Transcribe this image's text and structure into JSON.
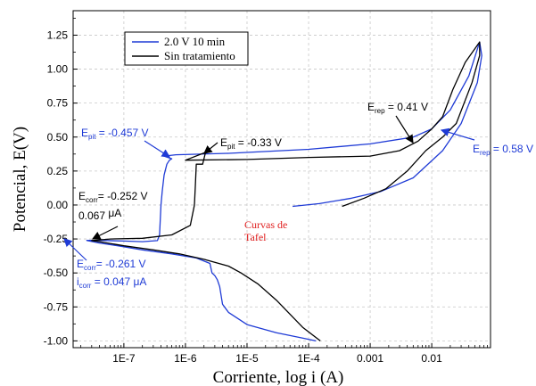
{
  "chart_data": {
    "type": "line",
    "xlabel": "Corriente, log i (A)",
    "ylabel": "Potencial, E(V)",
    "x_scale": "log",
    "xlim": [
      1.5e-08,
      0.09
    ],
    "ylim": [
      -1.05,
      1.43
    ],
    "x_ticks": [
      {
        "value": 1e-07,
        "label": "1E-7"
      },
      {
        "value": 1e-06,
        "label": "1E-6"
      },
      {
        "value": 1e-05,
        "label": "1E-5"
      },
      {
        "value": 0.0001,
        "label": "1E-4"
      },
      {
        "value": 0.001,
        "label": "0.001"
      },
      {
        "value": 0.01,
        "label": "0.01"
      }
    ],
    "y_ticks": [
      {
        "value": -1.0,
        "label": "-1.00"
      },
      {
        "value": -0.75,
        "label": "-0.75"
      },
      {
        "value": -0.5,
        "label": "-0.50"
      },
      {
        "value": -0.25,
        "label": "-0.25"
      },
      {
        "value": 0.0,
        "label": "0.00"
      },
      {
        "value": 0.25,
        "label": "0.25"
      },
      {
        "value": 0.5,
        "label": "0.50"
      },
      {
        "value": 0.75,
        "label": "0.75"
      },
      {
        "value": 1.0,
        "label": "1.00"
      },
      {
        "value": 1.25,
        "label": "1.25"
      }
    ],
    "grid": true,
    "legend_position": "top-left",
    "series": [
      {
        "name": "2.0 V 10 min",
        "color": "#1f3bd6",
        "points": [
          [
            0.000132,
            -1.0
          ],
          [
            8e-05,
            -0.98
          ],
          [
            3e-05,
            -0.94
          ],
          [
            1e-05,
            -0.88
          ],
          [
            5e-06,
            -0.79
          ],
          [
            4e-06,
            -0.73
          ],
          [
            3.6e-06,
            -0.6
          ],
          [
            3.3e-06,
            -0.55
          ],
          [
            3e-06,
            -0.52
          ],
          [
            2.7e-06,
            -0.5
          ],
          [
            2.5e-06,
            -0.43
          ],
          [
            1.5e-06,
            -0.39
          ],
          [
            6e-07,
            -0.36
          ],
          [
            2e-07,
            -0.33
          ],
          [
            8e-08,
            -0.3
          ],
          [
            4e-08,
            -0.28
          ],
          [
            2.5e-08,
            -0.261
          ],
          [
            4e-08,
            -0.26
          ],
          [
            1e-07,
            -0.265
          ],
          [
            2e-07,
            -0.27
          ],
          [
            3.5e-07,
            -0.262
          ],
          [
            3.8e-07,
            -0.22
          ],
          [
            4e-07,
            0.0
          ],
          [
            4.2e-07,
            0.1
          ],
          [
            4.5e-07,
            0.22
          ],
          [
            5e-07,
            0.3
          ],
          [
            5.5e-07,
            0.33
          ],
          [
            6e-07,
            0.34
          ],
          [
            4.5e-07,
            0.36
          ],
          [
            7e-07,
            0.37
          ],
          [
            5e-06,
            0.38
          ],
          [
            0.0001,
            0.41
          ],
          [
            0.001,
            0.45
          ],
          [
            0.005,
            0.5
          ],
          [
            0.01,
            0.56
          ],
          [
            0.02,
            0.7
          ],
          [
            0.04,
            0.95
          ],
          [
            0.06,
            1.2
          ],
          [
            0.065,
            1.1
          ],
          [
            0.055,
            0.9
          ],
          [
            0.03,
            0.6
          ],
          [
            0.015,
            0.4
          ],
          [
            0.005,
            0.2
          ],
          [
            0.0015,
            0.1
          ],
          [
            0.0005,
            0.05
          ],
          [
            0.00015,
            0.01
          ],
          [
            5.5e-05,
            -0.01
          ]
        ]
      },
      {
        "name": "Sin tratamiento",
        "color": "#000000",
        "points": [
          [
            0.000155,
            -1.0
          ],
          [
            8e-05,
            -0.9
          ],
          [
            3e-05,
            -0.7
          ],
          [
            1.5e-05,
            -0.58
          ],
          [
            8e-06,
            -0.5
          ],
          [
            5e-06,
            -0.45
          ],
          [
            2e-06,
            -0.4
          ],
          [
            8e-07,
            -0.36
          ],
          [
            3e-07,
            -0.33
          ],
          [
            1e-07,
            -0.3
          ],
          [
            4e-08,
            -0.27
          ],
          [
            3e-08,
            -0.262
          ],
          [
            6e-08,
            -0.25
          ],
          [
            2e-07,
            -0.245
          ],
          [
            6e-07,
            -0.22
          ],
          [
            1.2e-06,
            -0.15
          ],
          [
            1.4e-06,
            0.0
          ],
          [
            1.45e-06,
            0.15
          ],
          [
            1.5e-06,
            0.3
          ],
          [
            1.8e-06,
            0.3
          ],
          [
            1.9e-06,
            0.3
          ],
          [
            2.1e-06,
            0.38
          ],
          [
            2.5e-06,
            0.4
          ],
          [
            1e-06,
            0.33
          ],
          [
            1e-05,
            0.335
          ],
          [
            0.0001,
            0.35
          ],
          [
            0.001,
            0.36
          ],
          [
            0.003,
            0.4
          ],
          [
            0.006,
            0.47
          ],
          [
            0.01,
            0.56
          ],
          [
            0.015,
            0.65
          ],
          [
            0.022,
            0.85
          ],
          [
            0.035,
            1.05
          ],
          [
            0.06,
            1.2
          ],
          [
            0.06,
            1.1
          ],
          [
            0.045,
            0.9
          ],
          [
            0.025,
            0.6
          ],
          [
            0.015,
            0.5
          ],
          [
            0.008,
            0.4
          ],
          [
            0.004,
            0.25
          ],
          [
            0.0018,
            0.12
          ],
          [
            0.0008,
            0.05
          ],
          [
            0.00035,
            -0.01
          ]
        ]
      }
    ],
    "annotations": [
      {
        "id": "e-pit-blue",
        "main": "E",
        "sub": "pit",
        "rest": " = -0.457 V",
        "color": "#1f3bd6"
      },
      {
        "id": "e-pit-black",
        "main": "E",
        "sub": "pit",
        "rest": " = -0.33 V",
        "color": "#000000"
      },
      {
        "id": "e-rep-black",
        "main": "E",
        "sub": "rep",
        "rest": " = 0.41 V",
        "color": "#000000"
      },
      {
        "id": "e-rep-blue",
        "main": "E",
        "sub": "rep",
        "rest": " = 0.58 V",
        "color": "#1f3bd6"
      },
      {
        "id": "e-corr-black",
        "main": "E",
        "sub": "corr",
        "rest": "= -0.252 V",
        "color": "#000000"
      },
      {
        "id": "i-corr-black",
        "main": "0.067 ",
        "sub": "",
        "rest": "μA",
        "color": "#000000"
      },
      {
        "id": "e-corr-blue",
        "main": "E",
        "sub": "corr",
        "rest": "= -0.261 V",
        "color": "#1f3bd6"
      },
      {
        "id": "i-corr-blue",
        "main": "i",
        "sub": "corr",
        "rest": " = 0.047 μA",
        "color": "#1f3bd6"
      }
    ],
    "tafel_note": [
      "Curvas de",
      "Tafel"
    ],
    "tafel_color": "#e02020"
  }
}
